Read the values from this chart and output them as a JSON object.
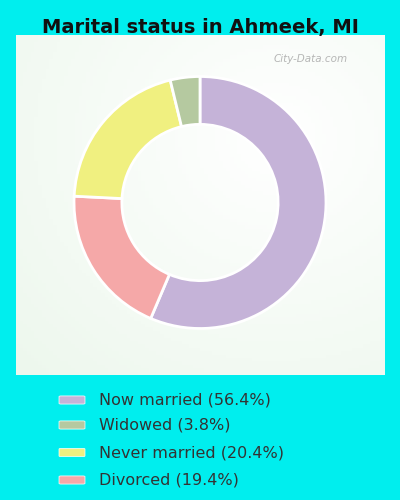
{
  "title": "Marital status in Ahmeek, MI",
  "title_fontsize": 14,
  "title_color": "#111111",
  "bg_color": "#00EEEE",
  "chart_bg_color": "#d8eedc",
  "slices": [
    56.4,
    19.4,
    20.4,
    3.8
  ],
  "labels": [
    "Now married (56.4%)",
    "Widowed (3.8%)",
    "Never married (20.4%)",
    "Divorced (19.4%)"
  ],
  "legend_colors": [
    "#c5b3d8",
    "#b5c9a0",
    "#f0f080",
    "#f5a8a8"
  ],
  "slice_colors": [
    "#c5b3d8",
    "#f5a8a8",
    "#f0f080",
    "#b5c9a0"
  ],
  "legend_text_color": "#333333",
  "legend_fontsize": 11.5,
  "watermark": "City-Data.com",
  "donut_width": 0.38,
  "start_angle": 90
}
